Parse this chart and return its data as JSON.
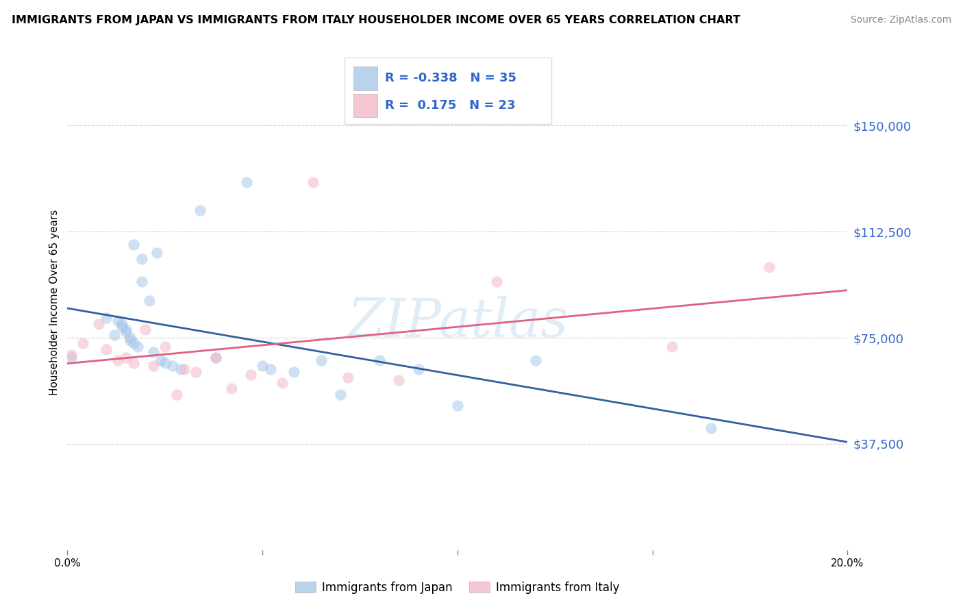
{
  "title": "IMMIGRANTS FROM JAPAN VS IMMIGRANTS FROM ITALY HOUSEHOLDER INCOME OVER 65 YEARS CORRELATION CHART",
  "source": "Source: ZipAtlas.com",
  "ylabel": "Householder Income Over 65 years",
  "xlim": [
    0.0,
    0.2
  ],
  "ylim": [
    0,
    175000
  ],
  "ytick_positions": [
    37500,
    75000,
    112500,
    150000
  ],
  "ytick_labels": [
    "$37,500",
    "$75,000",
    "$112,500",
    "$150,000"
  ],
  "grid_color": "#cccccc",
  "background_color": "#ffffff",
  "japan_color": "#a8c8e8",
  "italy_color": "#f4b8c8",
  "japan_line_color": "#3060a0",
  "italy_line_color": "#e06080",
  "japan_R": -0.338,
  "japan_N": 35,
  "italy_R": 0.175,
  "italy_N": 23,
  "japan_x": [
    0.001,
    0.01,
    0.012,
    0.013,
    0.014,
    0.014,
    0.015,
    0.015,
    0.016,
    0.016,
    0.017,
    0.017,
    0.018,
    0.019,
    0.019,
    0.021,
    0.022,
    0.023,
    0.024,
    0.025,
    0.027,
    0.029,
    0.034,
    0.038,
    0.046,
    0.05,
    0.052,
    0.058,
    0.065,
    0.07,
    0.08,
    0.09,
    0.1,
    0.12,
    0.165
  ],
  "japan_y": [
    68000,
    82000,
    76000,
    81000,
    80000,
    79000,
    78000,
    77000,
    75000,
    74000,
    73000,
    108000,
    72000,
    103000,
    95000,
    88000,
    70000,
    105000,
    67000,
    66000,
    65000,
    64000,
    120000,
    68000,
    130000,
    65000,
    64000,
    63000,
    67000,
    55000,
    67000,
    64000,
    51000,
    67000,
    43000
  ],
  "italy_x": [
    0.001,
    0.004,
    0.008,
    0.01,
    0.013,
    0.015,
    0.017,
    0.02,
    0.022,
    0.025,
    0.028,
    0.03,
    0.033,
    0.038,
    0.042,
    0.047,
    0.055,
    0.063,
    0.072,
    0.085,
    0.11,
    0.155,
    0.18
  ],
  "italy_y": [
    69000,
    73000,
    80000,
    71000,
    67000,
    68000,
    66000,
    78000,
    65000,
    72000,
    55000,
    64000,
    63000,
    68000,
    57000,
    62000,
    59000,
    130000,
    61000,
    60000,
    95000,
    72000,
    100000
  ],
  "watermark": "ZIPatlas",
  "legend_japan_label": "Immigrants from Japan",
  "legend_italy_label": "Immigrants from Italy",
  "legend_R_color": "#3366cc",
  "right_label_color": "#3366cc",
  "title_fontsize": 11.5,
  "source_fontsize": 10,
  "marker_size": 140,
  "marker_alpha": 0.55
}
